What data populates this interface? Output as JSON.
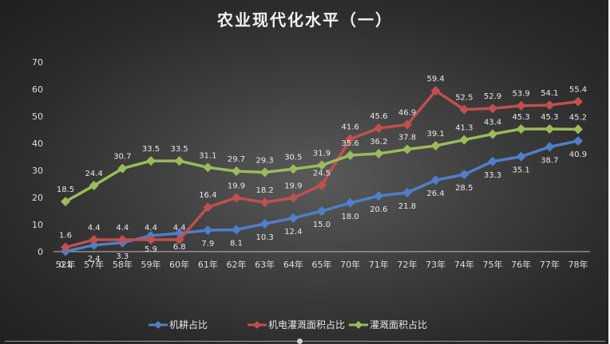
{
  "chart_data": {
    "type": "line",
    "title": "农业现代化水平（一）",
    "categories": [
      "52年",
      "57年",
      "58年",
      "59年",
      "60年",
      "61年",
      "62年",
      "63年",
      "64年",
      "65年",
      "70年",
      "71年",
      "72年",
      "73年",
      "74年",
      "75年",
      "76年",
      "77年",
      "78年"
    ],
    "ylim": [
      0,
      70
    ],
    "yticks": [
      0,
      10,
      20,
      30,
      40,
      50,
      60,
      70
    ],
    "grid": false,
    "legend_position": "bottom",
    "series": [
      {
        "name": "机耕占比",
        "color": "#4f7fc8",
        "values": [
          0.1,
          2.4,
          3.3,
          5.9,
          6.8,
          7.9,
          8.1,
          10.3,
          12.4,
          15.0,
          18.0,
          20.6,
          21.8,
          26.4,
          28.5,
          33.3,
          35.1,
          38.7,
          40.9
        ],
        "labels": [
          "0.1",
          "2.4",
          "3.3",
          "5.9",
          "6.8",
          "7.9",
          "8.1",
          "10.3",
          "12.4",
          "15.0",
          "18.0",
          "20.6",
          "21.8",
          "26.4",
          "28.5",
          "33.3",
          "35.1",
          "38.7",
          "40.9"
        ]
      },
      {
        "name": "机电灌溉面积占比",
        "color": "#c0504d",
        "values": [
          1.6,
          4.4,
          4.4,
          4.4,
          4.4,
          16.4,
          19.9,
          18.2,
          19.9,
          24.5,
          41.6,
          45.6,
          46.9,
          59.4,
          52.5,
          52.9,
          53.9,
          54.1,
          55.4
        ],
        "labels": [
          "1.6",
          "4.4",
          "4.4",
          "4.4",
          "4.4",
          "16.4",
          "19.9",
          "18.2",
          "19.9",
          "24.5",
          "41.6",
          "45.6",
          "46.9",
          "59.4",
          "52.5",
          "52.9",
          "53.9",
          "54.1",
          "55.4"
        ]
      },
      {
        "name": "灌溉面积占比",
        "color": "#9bbb59",
        "values": [
          18.5,
          24.4,
          30.7,
          33.5,
          33.5,
          31.1,
          29.7,
          29.3,
          30.5,
          31.9,
          35.6,
          36.2,
          37.8,
          39.1,
          41.3,
          43.4,
          45.3,
          45.3,
          45.2
        ],
        "labels": [
          "18.5",
          "24.4",
          "30.7",
          "33.5",
          "33.5",
          "31.1",
          "29.7",
          "29.3",
          "30.5",
          "31.9",
          "35.6",
          "36.2",
          "37.8",
          "39.1",
          "41.3",
          "43.4",
          "45.3",
          "45.3",
          "45.2"
        ]
      }
    ]
  }
}
